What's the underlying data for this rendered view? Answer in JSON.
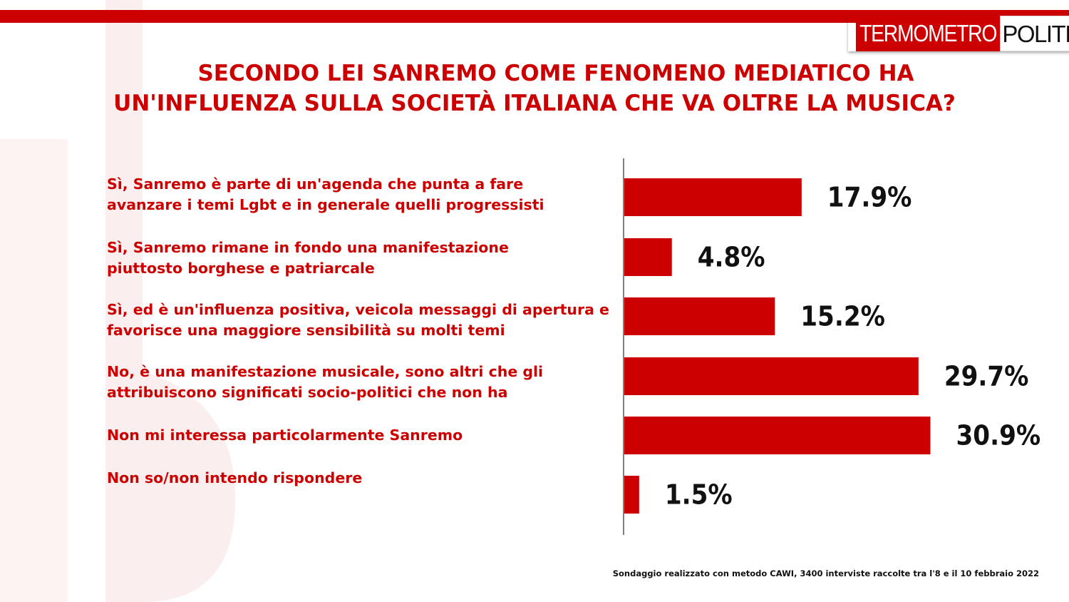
{
  "brand": {
    "logo_part1": "TERMOMETRO",
    "logo_part2": "POLITICO",
    "accent": "#cc0000"
  },
  "title_line1": "SECONDO LEI SANREMO COME FENOMENO MEDIATICO HA",
  "title_line2": "UN'INFLUENZA SULLA SOCIETÀ ITALIANA CHE VA OLTRE LA MUSICA?",
  "footnote": "Sondaggio realizzato con metodo CAWI, 3400 interviste raccolte tra l'8 e il 10 febbraio 2022",
  "chart_data": {
    "type": "bar",
    "orientation": "horizontal",
    "categories": [
      [
        "Sì, Sanremo è parte di un'agenda che punta a fare",
        "avanzare i temi Lgbt e in generale quelli progressisti"
      ],
      [
        "Sì, Sanremo rimane in fondo una manifestazione",
        "piuttosto borghese e patriarcale"
      ],
      [
        "Sì, ed è un'influenza positiva, veicola messaggi di apertura e",
        "favorisce una maggiore sensibilità  su molti temi"
      ],
      [
        "No, è una manifestazione musicale, sono altri che gli",
        "attribuiscono significati socio-politici che non ha"
      ],
      [
        "Non mi interessa particolarmente Sanremo"
      ],
      [
        "Non so/non intendo rispondere"
      ]
    ],
    "values": [
      17.9,
      4.8,
      15.2,
      29.7,
      30.9,
      1.5
    ],
    "value_labels": [
      "17.9%",
      "4.8%",
      "15.2%",
      "29.7%",
      "30.9%",
      "1.5%"
    ],
    "bar_color": "#cc0000"
  }
}
